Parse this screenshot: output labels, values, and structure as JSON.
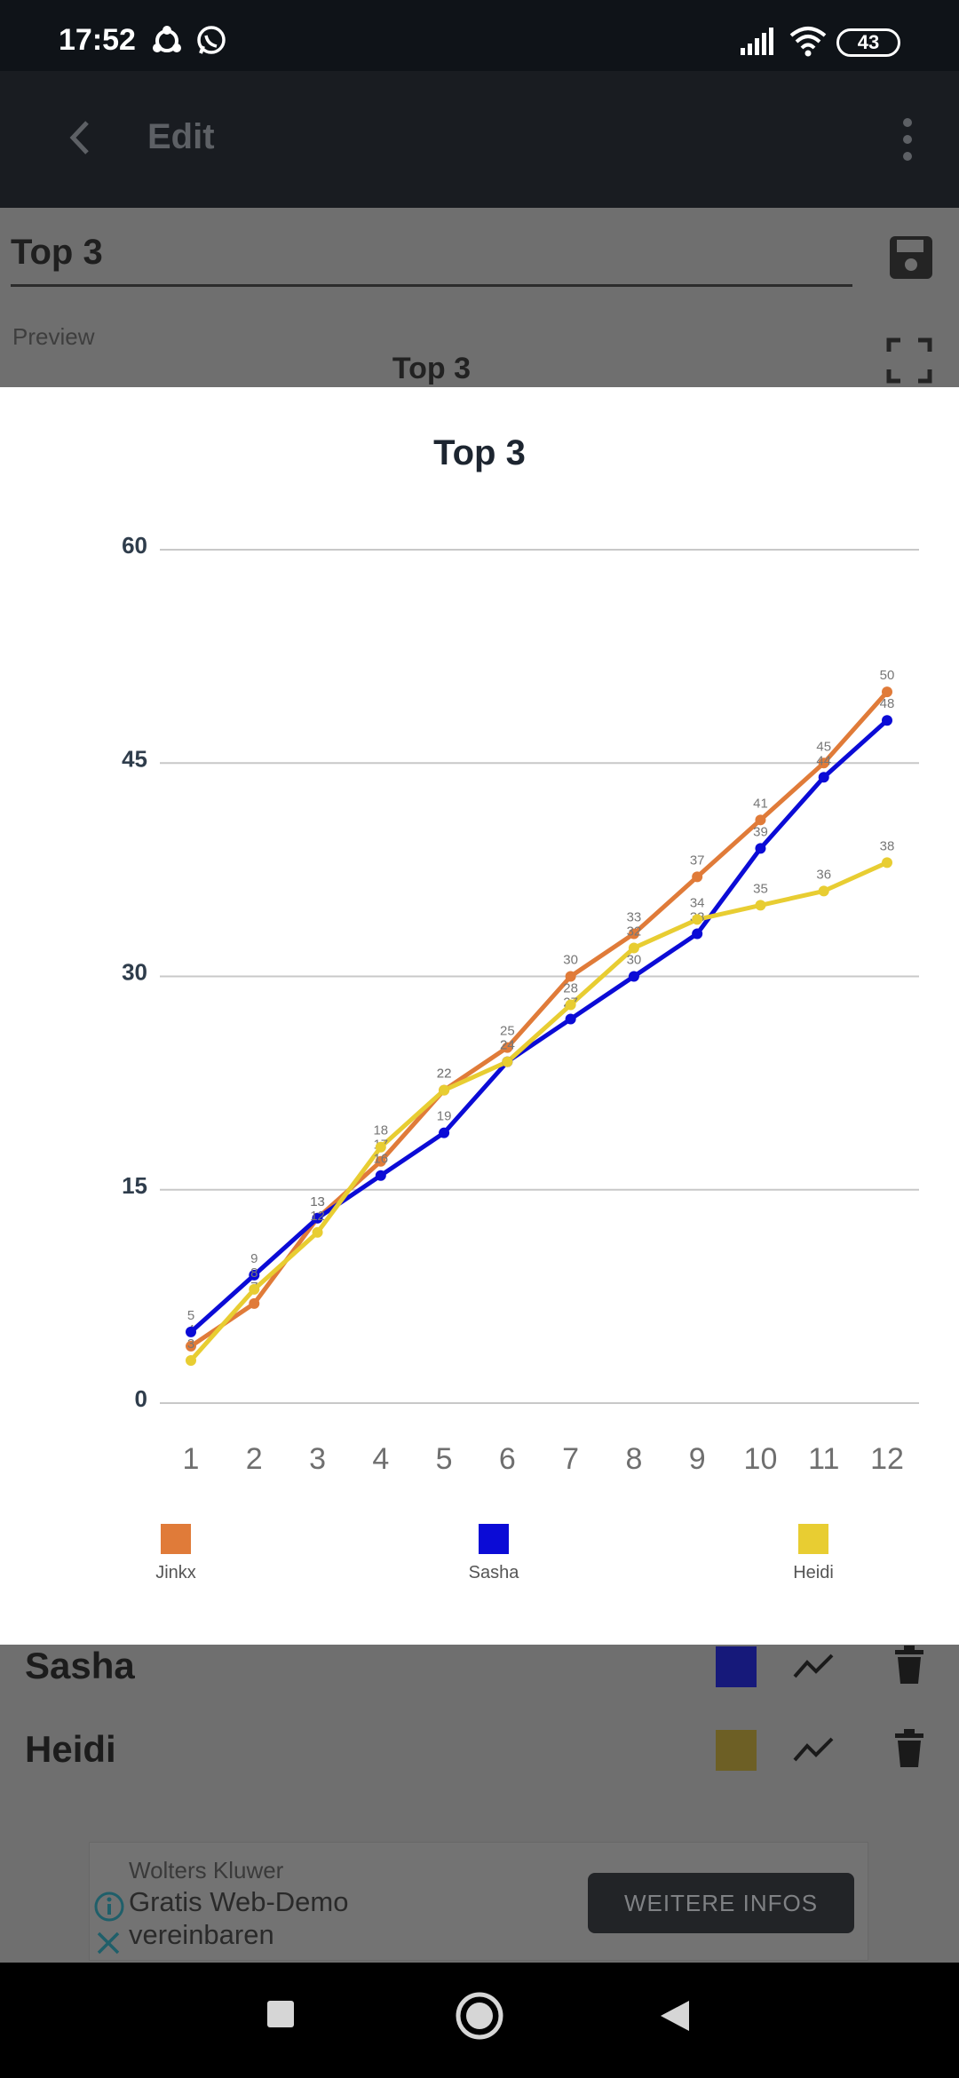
{
  "status_bar": {
    "time": "17:52",
    "battery": "43"
  },
  "app_bar": {
    "title": "Edit"
  },
  "editor": {
    "title_value": "Top 3",
    "preview_label": "Preview",
    "preview_chart_title": "Top 3"
  },
  "rows": [
    {
      "name": "Sasha",
      "color": "#16197a"
    },
    {
      "name": "Heidi",
      "color": "#6d5f25"
    }
  ],
  "ad": {
    "sponsor": "Wolters Kluwer",
    "headline": "Gratis Web-Demo vereinbaren",
    "cta": "WEITERE INFOS"
  },
  "dialog": {
    "title": "Top 3"
  },
  "chart_data": {
    "type": "line",
    "title": "Top 3",
    "x": [
      1,
      2,
      3,
      4,
      5,
      6,
      7,
      8,
      9,
      10,
      11,
      12
    ],
    "x_ticks": [
      "1",
      "2",
      "3",
      "4",
      "5",
      "6",
      "7",
      "8",
      "9",
      "10",
      "11",
      "12"
    ],
    "ylim": [
      0,
      60
    ],
    "y_ticks": [
      0,
      15,
      30,
      45,
      60
    ],
    "grid": true,
    "legend_position": "bottom",
    "series": [
      {
        "name": "Jinkx",
        "color": "#e07b39",
        "values": [
          4,
          7,
          13,
          17,
          22,
          25,
          30,
          33,
          37,
          41,
          45,
          50
        ]
      },
      {
        "name": "Sasha",
        "color": "#0b0bd6",
        "values": [
          5,
          9,
          13,
          16,
          19,
          24,
          27,
          30,
          33,
          39,
          44,
          48
        ]
      },
      {
        "name": "Heidi",
        "color": "#e8cd32",
        "values": [
          3,
          8,
          12,
          18,
          22,
          24,
          28,
          32,
          34,
          35,
          36,
          38
        ]
      }
    ]
  }
}
